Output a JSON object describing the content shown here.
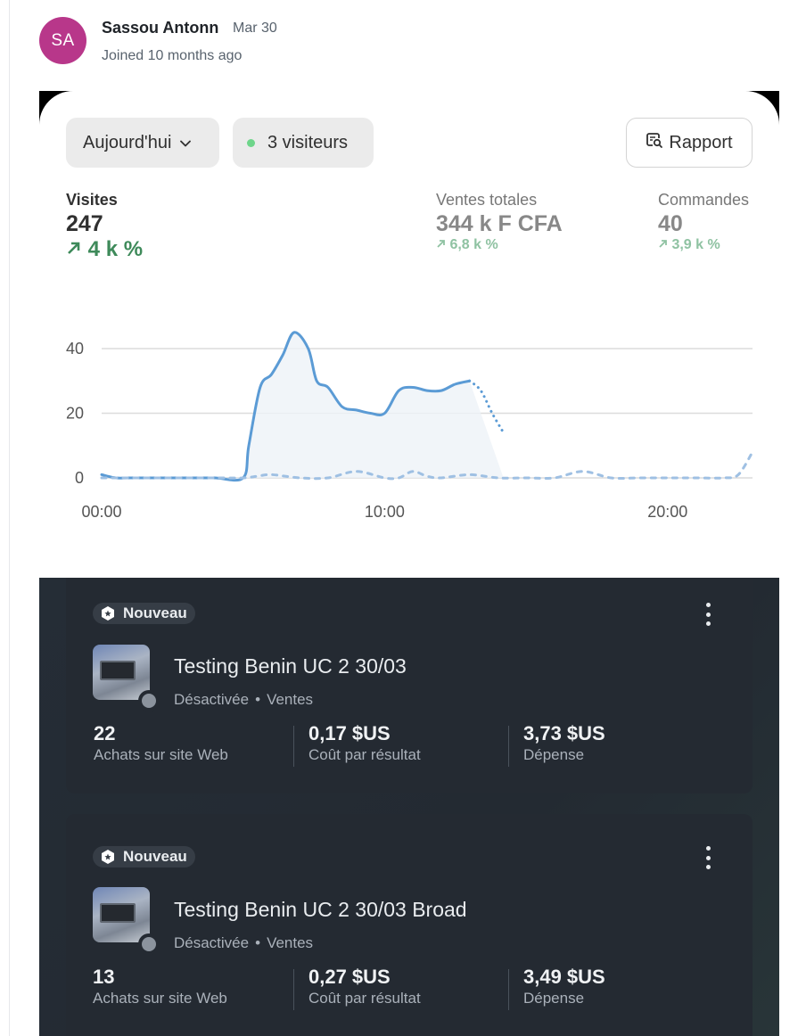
{
  "post": {
    "avatar_initials": "SA",
    "author": "Sassou Antonn",
    "date": "Mar 30",
    "joined": "Joined 10 months ago"
  },
  "analytics": {
    "date_filter": "Aujourd'hui",
    "visitors": "3 visiteurs",
    "report_button": "Rapport",
    "metrics": [
      {
        "label": "Visites",
        "value": "247",
        "delta": "4 k %",
        "active": true
      },
      {
        "label": "Ventes totales",
        "value": "344 k F CFA",
        "delta": "6,8 k %",
        "active": false
      },
      {
        "label": "Commandes",
        "value": "40",
        "delta": "3,9 k %",
        "active": false
      }
    ],
    "colors": {
      "line": "#5b9bd5",
      "positive": "#3e8a5a",
      "live_dot": "#6ed58a"
    }
  },
  "chart_data": {
    "type": "line",
    "x_ticks": [
      "00:00",
      "10:00",
      "20:00"
    ],
    "y_ticks": [
      "0",
      "20",
      "40"
    ],
    "ylim": [
      0,
      40
    ],
    "xlim": [
      0,
      23
    ],
    "grid": true,
    "series": [
      {
        "style": "solid",
        "x": [
          0,
          0.5,
          1,
          2,
          3,
          4,
          5,
          5.2,
          5.6,
          6,
          6.4,
          6.8,
          7.3,
          7.6,
          8,
          8.5,
          9,
          9.5,
          10,
          10.5,
          11,
          11.5,
          12,
          12.5,
          13
        ],
        "y": [
          1,
          0,
          0,
          0,
          0,
          0,
          0,
          10,
          28,
          32,
          38,
          45,
          40,
          30,
          28,
          22,
          21,
          20,
          20,
          27,
          28,
          27,
          27,
          29,
          30
        ]
      },
      {
        "style": "dotted",
        "x": [
          13,
          13.4,
          13.8,
          14.2
        ],
        "y": [
          30,
          27,
          20,
          14
        ]
      },
      {
        "style": "dotted",
        "x": [
          0,
          1,
          2,
          3,
          4,
          5,
          5.5,
          6,
          7,
          8,
          9,
          10,
          10.5,
          11,
          11.5,
          12,
          13,
          14,
          15,
          16,
          17,
          18,
          19,
          20,
          21,
          22,
          22.5,
          23
        ],
        "y": [
          0,
          0,
          0,
          0,
          0,
          0,
          0.5,
          1,
          0,
          0,
          2,
          0,
          0,
          2,
          0.5,
          0,
          1,
          0,
          0,
          0,
          2,
          0,
          0,
          0,
          0,
          0,
          1,
          8
        ]
      }
    ]
  },
  "ads": [
    {
      "badge": "Nouveau",
      "title": "Testing Benin UC 2 30/03",
      "status": "Désactivée",
      "separator": "•",
      "objective": "Ventes",
      "stats": [
        {
          "value": "22",
          "label": "Achats sur site Web"
        },
        {
          "value": "0,17 $US",
          "label": "Coût par résultat"
        },
        {
          "value": "3,73 $US",
          "label": "Dépense"
        }
      ]
    },
    {
      "badge": "Nouveau",
      "title": "Testing Benin UC 2 30/03 Broad",
      "status": "Désactivée",
      "separator": "•",
      "objective": "Ventes",
      "stats": [
        {
          "value": "13",
          "label": "Achats sur site Web"
        },
        {
          "value": "0,27 $US",
          "label": "Coût par résultat"
        },
        {
          "value": "3,49 $US",
          "label": "Dépense"
        }
      ]
    }
  ]
}
